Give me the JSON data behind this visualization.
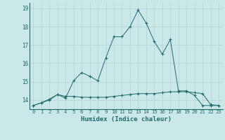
{
  "xlabel": "Humidex (Indice chaleur)",
  "background_color": "#cbe8e8",
  "grid_color": "#b8d4d4",
  "line_color": "#1e6b6b",
  "x_values": [
    0,
    1,
    2,
    3,
    4,
    5,
    6,
    7,
    8,
    9,
    10,
    11,
    12,
    13,
    14,
    15,
    16,
    17,
    18,
    19,
    20,
    21,
    22,
    23
  ],
  "series1": [
    13.7,
    13.85,
    14.0,
    14.3,
    14.1,
    15.05,
    15.5,
    15.3,
    15.05,
    16.3,
    17.45,
    17.45,
    18.0,
    18.9,
    18.2,
    17.2,
    16.5,
    17.3,
    14.5,
    14.5,
    14.25,
    13.7,
    13.7,
    13.7
  ],
  "series2": [
    13.7,
    13.85,
    14.05,
    14.3,
    14.2,
    14.2,
    14.15,
    14.15,
    14.15,
    14.15,
    14.2,
    14.25,
    14.3,
    14.35,
    14.35,
    14.35,
    14.4,
    14.45,
    14.45,
    14.45,
    14.4,
    14.35,
    13.75,
    13.7
  ],
  "ylim": [
    13.5,
    19.3
  ],
  "xlim": [
    -0.5,
    23.5
  ],
  "yticks": [
    14,
    15,
    16,
    17,
    18,
    19
  ],
  "xticks": [
    0,
    1,
    2,
    3,
    4,
    5,
    6,
    7,
    8,
    9,
    10,
    11,
    12,
    13,
    14,
    15,
    16,
    17,
    18,
    19,
    20,
    21,
    22,
    23
  ]
}
